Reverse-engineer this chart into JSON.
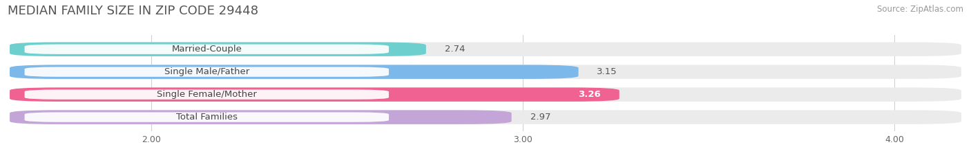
{
  "title": "MEDIAN FAMILY SIZE IN ZIP CODE 29448",
  "source": "Source: ZipAtlas.com",
  "categories": [
    "Married-Couple",
    "Single Male/Father",
    "Single Female/Mother",
    "Total Families"
  ],
  "values": [
    2.74,
    3.15,
    3.26,
    2.97
  ],
  "bar_colors": [
    "#6ecfcf",
    "#7db8ea",
    "#f06292",
    "#c3a5d8"
  ],
  "value_inside": [
    false,
    false,
    true,
    false
  ],
  "x_ticks": [
    2.0,
    3.0,
    4.0
  ],
  "x_min": 1.62,
  "x_max": 4.18,
  "bar_height": 0.62,
  "background_color": "#ffffff",
  "bar_bg_color": "#ebebeb",
  "title_fontsize": 13,
  "source_fontsize": 8.5,
  "label_fontsize": 9.5,
  "value_fontsize": 9.5,
  "title_color": "#555555",
  "source_color": "#999999",
  "label_text_color": "#444444",
  "value_color_outside": "#555555",
  "value_color_inside": "#ffffff"
}
